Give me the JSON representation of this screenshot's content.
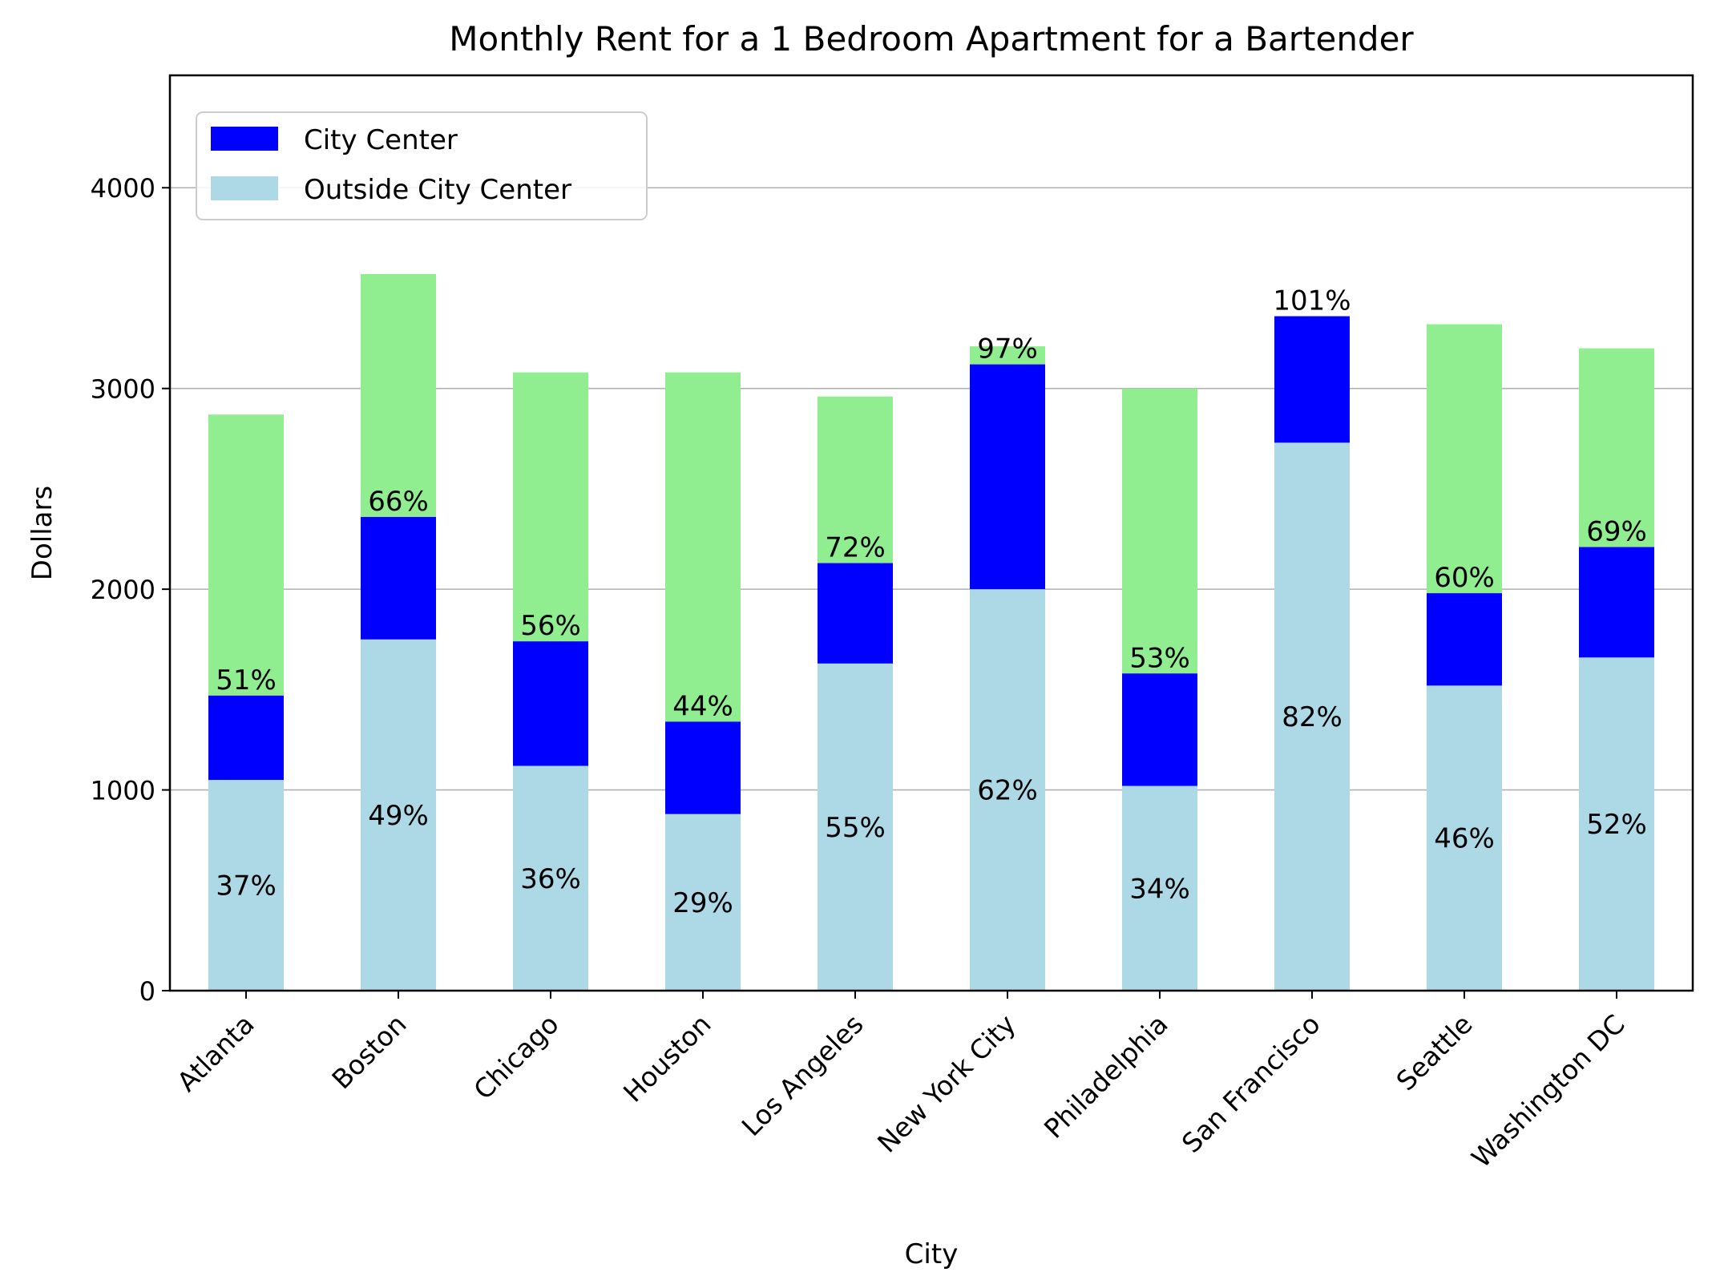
{
  "chart_data": {
    "type": "bar",
    "title": "Monthly Rent for a 1 Bedroom Apartment for a Bartender",
    "xlabel": "City",
    "ylabel": "Dollars",
    "ylim": [
      0,
      4560
    ],
    "yticks": [
      0,
      1000,
      2000,
      3000,
      4000
    ],
    "grid": "horizontal",
    "legend_position": "top-left",
    "categories": [
      "Atlanta",
      "Boston",
      "Chicago",
      "Houston",
      "Los Angeles",
      "New York City",
      "Philadelphia",
      "San Francisco",
      "Seattle",
      "Washington DC"
    ],
    "series": [
      {
        "name": "Outside City Center",
        "color": "#add8e6",
        "values": [
          1050,
          1750,
          1120,
          880,
          1630,
          2000,
          1020,
          2730,
          1520,
          1660
        ],
        "labels": [
          "37%",
          "49%",
          "36%",
          "29%",
          "55%",
          "62%",
          "34%",
          "82%",
          "46%",
          "52%"
        ]
      },
      {
        "name": "City Center",
        "color": "#0000ff",
        "values": [
          1470,
          2360,
          1740,
          1340,
          2130,
          3120,
          1580,
          3360,
          1980,
          2210
        ],
        "labels": [
          "51%",
          "66%",
          "56%",
          "44%",
          "72%",
          "97%",
          "53%",
          "101%",
          "60%",
          "69%"
        ]
      },
      {
        "color": "#90ee90",
        "values": [
          2870,
          3570,
          3080,
          3080,
          2960,
          3210,
          3000,
          3360,
          3320,
          3200
        ]
      }
    ]
  }
}
